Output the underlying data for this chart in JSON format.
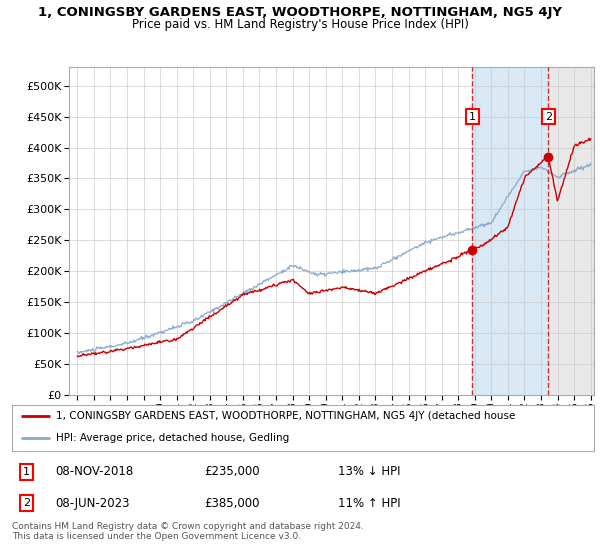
{
  "title": "1, CONINGSBY GARDENS EAST, WOODTHORPE, NOTTINGHAM, NG5 4JY",
  "subtitle": "Price paid vs. HM Land Registry's House Price Index (HPI)",
  "ytick_values": [
    0,
    50000,
    100000,
    150000,
    200000,
    250000,
    300000,
    350000,
    400000,
    450000,
    500000
  ],
  "ylim": [
    0,
    530000
  ],
  "xlim_start": 1994.5,
  "xlim_end": 2026.2,
  "hpi_color": "#88AACC",
  "price_color": "#CC0000",
  "marker1_year": 2018.86,
  "marker1_value": 235000,
  "marker2_year": 2023.44,
  "marker2_value": 385000,
  "legend_label1": "1, CONINGSBY GARDENS EAST, WOODTHORPE, NOTTINGHAM, NG5 4JY (detached house",
  "legend_label2": "HPI: Average price, detached house, Gedling",
  "table_row1": [
    "1",
    "08-NOV-2018",
    "£235,000",
    "13% ↓ HPI"
  ],
  "table_row2": [
    "2",
    "08-JUN-2023",
    "£385,000",
    "11% ↑ HPI"
  ],
  "footer": "Contains HM Land Registry data © Crown copyright and database right 2024.\nThis data is licensed under the Open Government Licence v3.0.",
  "bg_color": "#FFFFFF",
  "grid_color": "#CCCCCC",
  "shade_blue": "#D8E8F5",
  "shade_gray": "#E8E8E8"
}
